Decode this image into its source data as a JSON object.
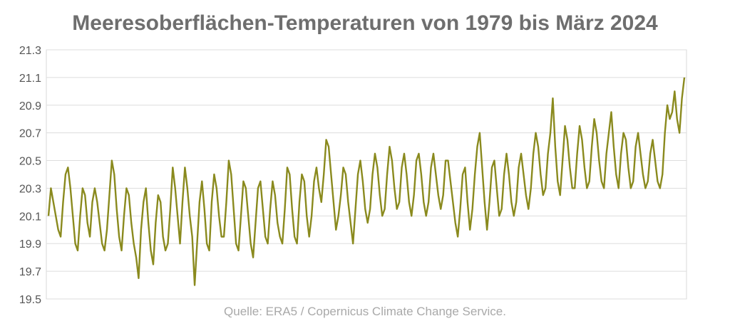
{
  "chart_data": {
    "type": "line",
    "title": "Meeresoberflächen-Temperaturen von 1979 bis März 2024",
    "source": "Quelle: ERA5 / Copernicus Climate Change Service.",
    "xlabel": "",
    "ylabel": "",
    "x_start": "1979-01",
    "x_end": "2024-03",
    "ylim": [
      19.5,
      21.3
    ],
    "yticks": [
      "19.5",
      "19.7",
      "19.9",
      "20.1",
      "20.3",
      "20.5",
      "20.7",
      "20.9",
      "21.1",
      "21.3"
    ],
    "grid": true,
    "legend": "none",
    "line_color": "#8a8a1e",
    "series": [
      {
        "name": "",
        "values": [
          20.1,
          20.3,
          20.2,
          20.1,
          20.0,
          19.95,
          20.2,
          20.4,
          20.45,
          20.3,
          20.1,
          19.9,
          19.85,
          20.1,
          20.3,
          20.25,
          20.05,
          19.95,
          20.2,
          20.3,
          20.2,
          20.05,
          19.9,
          19.85,
          20.0,
          20.25,
          20.5,
          20.4,
          20.15,
          19.95,
          19.85,
          20.1,
          20.3,
          20.25,
          20.05,
          19.9,
          19.8,
          19.65,
          20.0,
          20.2,
          20.3,
          20.05,
          19.85,
          19.75,
          20.05,
          20.25,
          20.2,
          19.95,
          19.85,
          19.9,
          20.15,
          20.45,
          20.3,
          20.1,
          19.9,
          20.2,
          20.45,
          20.3,
          20.1,
          19.95,
          19.6,
          19.9,
          20.2,
          20.35,
          20.15,
          19.9,
          19.85,
          20.2,
          20.4,
          20.3,
          20.1,
          19.95,
          19.95,
          20.2,
          20.5,
          20.4,
          20.15,
          19.9,
          19.85,
          20.1,
          20.35,
          20.3,
          20.1,
          19.9,
          19.8,
          20.05,
          20.3,
          20.35,
          20.15,
          19.95,
          19.9,
          20.15,
          20.35,
          20.25,
          20.05,
          19.95,
          19.9,
          20.15,
          20.45,
          20.4,
          20.15,
          19.95,
          19.9,
          20.2,
          20.4,
          20.35,
          20.1,
          19.95,
          20.1,
          20.35,
          20.45,
          20.3,
          20.2,
          20.4,
          20.65,
          20.6,
          20.4,
          20.2,
          20.0,
          20.1,
          20.25,
          20.45,
          20.4,
          20.2,
          20.05,
          19.9,
          20.15,
          20.4,
          20.5,
          20.35,
          20.15,
          20.05,
          20.15,
          20.4,
          20.55,
          20.45,
          20.25,
          20.1,
          20.15,
          20.4,
          20.6,
          20.5,
          20.3,
          20.15,
          20.2,
          20.45,
          20.55,
          20.4,
          20.2,
          20.1,
          20.25,
          20.5,
          20.55,
          20.4,
          20.2,
          20.1,
          20.2,
          20.45,
          20.55,
          20.4,
          20.25,
          20.15,
          20.25,
          20.5,
          20.5,
          20.35,
          20.2,
          20.05,
          19.95,
          20.15,
          20.4,
          20.45,
          20.2,
          20.0,
          20.15,
          20.4,
          20.6,
          20.7,
          20.45,
          20.2,
          20.0,
          20.2,
          20.45,
          20.5,
          20.3,
          20.1,
          20.15,
          20.4,
          20.55,
          20.4,
          20.2,
          20.1,
          20.2,
          20.45,
          20.55,
          20.4,
          20.25,
          20.15,
          20.3,
          20.55,
          20.7,
          20.6,
          20.4,
          20.25,
          20.3,
          20.55,
          20.7,
          20.95,
          20.6,
          20.35,
          20.25,
          20.5,
          20.75,
          20.65,
          20.45,
          20.3,
          20.3,
          20.55,
          20.75,
          20.65,
          20.45,
          20.3,
          20.35,
          20.6,
          20.8,
          20.7,
          20.5,
          20.35,
          20.3,
          20.55,
          20.7,
          20.85,
          20.6,
          20.4,
          20.3,
          20.55,
          20.7,
          20.65,
          20.45,
          20.3,
          20.35,
          20.6,
          20.7,
          20.55,
          20.4,
          20.3,
          20.35,
          20.55,
          20.65,
          20.5,
          20.35,
          20.3,
          20.4,
          20.7,
          20.9,
          20.8,
          20.85,
          21.0,
          20.8,
          20.7,
          20.95,
          21.1
        ]
      }
    ]
  }
}
